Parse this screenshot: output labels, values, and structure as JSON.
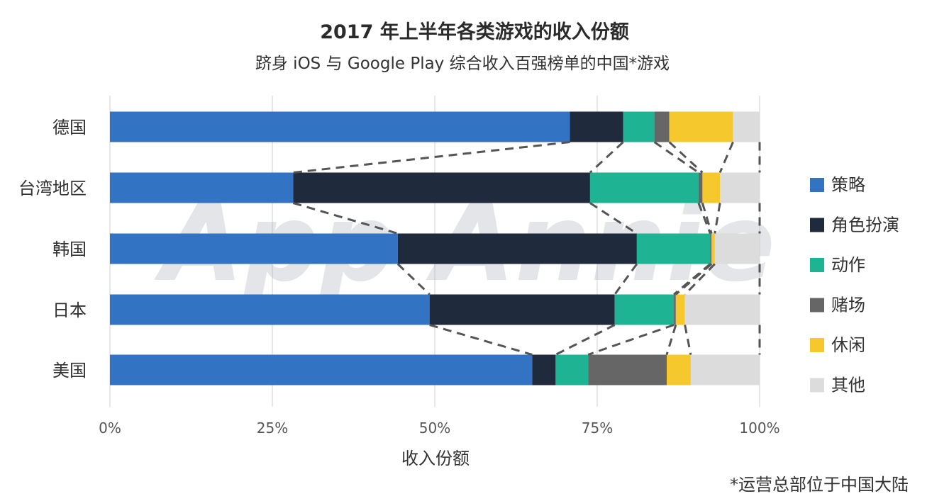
{
  "chart_data": {
    "type": "bar",
    "orientation": "horizontal",
    "stacked": true,
    "title": "2017 年上半年各类游戏的收入份额",
    "subtitle": "跻身 iOS 与 Google Play 综合收入百强榜单的中国*游戏",
    "xlabel": "收入份额",
    "ylabel": "",
    "xlim": [
      0,
      100
    ],
    "xticks": [
      "0%",
      "25%",
      "50%",
      "75%",
      "100%"
    ],
    "grid": true,
    "legend_position": "right",
    "categories": [
      "德国",
      "台湾地区",
      "韩国",
      "日本",
      "美国"
    ],
    "series": [
      {
        "name": "策略",
        "color": "#3373c4",
        "values": [
          70.8,
          28.2,
          44.3,
          49.2,
          65.0
        ]
      },
      {
        "name": "角色扮演",
        "color": "#1f2a3c",
        "values": [
          8.2,
          45.7,
          36.8,
          28.5,
          3.6
        ]
      },
      {
        "name": "动作",
        "color": "#1db393",
        "values": [
          4.8,
          16.7,
          11.3,
          9.1,
          5.0
        ]
      },
      {
        "name": "赌场",
        "color": "#666666",
        "values": [
          2.3,
          0.6,
          0.2,
          0.3,
          12.1
        ]
      },
      {
        "name": "休闲",
        "color": "#f5c82e",
        "values": [
          9.8,
          2.7,
          0.5,
          1.4,
          3.7
        ]
      },
      {
        "name": "其他",
        "color": "#dcdcdc",
        "values": [
          4.1,
          6.1,
          6.9,
          11.5,
          10.6
        ]
      }
    ],
    "watermark": "App Annie",
    "footnote": "*运营总部位于中国大陆"
  }
}
